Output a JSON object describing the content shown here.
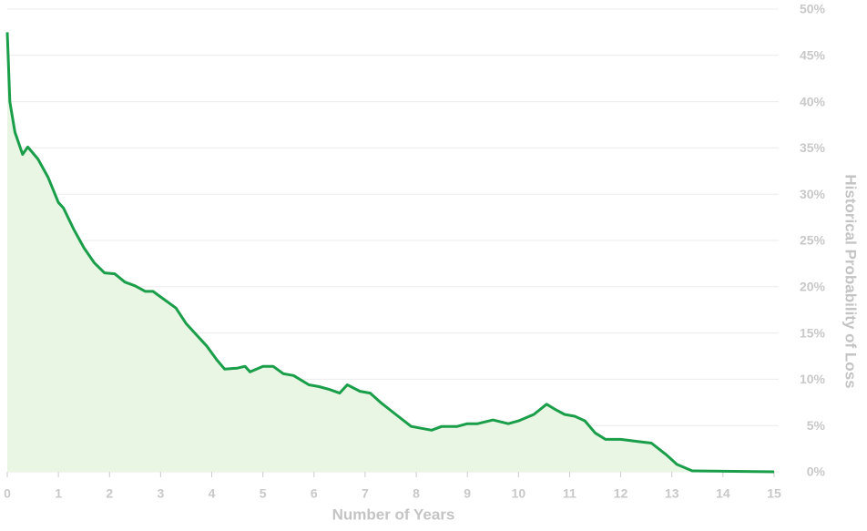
{
  "chart_data": {
    "type": "line",
    "x_label": "Number of Years",
    "y_label": "Historical Probability of Loss",
    "series": [
      {
        "name": "Historical Probability of Loss",
        "color": "#1a9e4a",
        "fill": "#e9f6e4",
        "x": [
          0,
          0.05,
          0.15,
          0.3,
          0.4,
          0.6,
          0.8,
          1.0,
          1.1,
          1.3,
          1.5,
          1.7,
          1.9,
          2.1,
          2.3,
          2.5,
          2.7,
          2.85,
          3.0,
          3.3,
          3.5,
          3.7,
          3.9,
          4.1,
          4.25,
          4.5,
          4.65,
          4.75,
          5.0,
          5.2,
          5.4,
          5.6,
          5.9,
          6.1,
          6.3,
          6.5,
          6.65,
          6.9,
          7.1,
          7.3,
          7.6,
          7.9,
          8.3,
          8.5,
          8.8,
          9.0,
          9.2,
          9.5,
          9.8,
          10.0,
          10.3,
          10.55,
          10.7,
          10.9,
          11.1,
          11.3,
          11.5,
          11.7,
          12.0,
          12.3,
          12.6,
          12.9,
          13.1,
          13.4,
          15
        ],
        "values": [
          47.5,
          40,
          36.7,
          34.3,
          35.1,
          33.8,
          31.8,
          29.1,
          28.5,
          26.2,
          24.2,
          22.6,
          21.5,
          21.4,
          20.5,
          20.1,
          19.5,
          19.5,
          18.9,
          17.7,
          16.0,
          14.8,
          13.6,
          12.1,
          11.1,
          11.2,
          11.4,
          10.8,
          11.4,
          11.4,
          10.6,
          10.4,
          9.4,
          9.2,
          8.9,
          8.5,
          9.4,
          8.7,
          8.5,
          7.5,
          6.2,
          4.9,
          4.5,
          4.9,
          4.9,
          5.2,
          5.2,
          5.6,
          5.2,
          5.5,
          6.2,
          7.3,
          6.8,
          6.2,
          6.0,
          5.5,
          4.2,
          3.5,
          3.5,
          3.3,
          3.1,
          1.8,
          0.8,
          0.1,
          0
        ]
      }
    ],
    "xlim": [
      0,
      15
    ],
    "xticks": [
      0,
      1,
      2,
      3,
      4,
      5,
      6,
      7,
      8,
      9,
      10,
      11,
      12,
      13,
      14,
      15
    ],
    "ylim": [
      0,
      50
    ],
    "yticks": [
      {
        "value": 0,
        "label": "0%"
      },
      {
        "value": 5,
        "label": "5%"
      },
      {
        "value": 10,
        "label": "10%"
      },
      {
        "value": 15,
        "label": "15%"
      },
      {
        "value": 20,
        "label": "20%"
      },
      {
        "value": 25,
        "label": "25%"
      },
      {
        "value": 30,
        "label": "30%"
      },
      {
        "value": 35,
        "label": "35%"
      },
      {
        "value": 40,
        "label": "40%"
      },
      {
        "value": 45,
        "label": "45%"
      },
      {
        "value": 50,
        "label": "50%"
      }
    ],
    "grid": true
  }
}
